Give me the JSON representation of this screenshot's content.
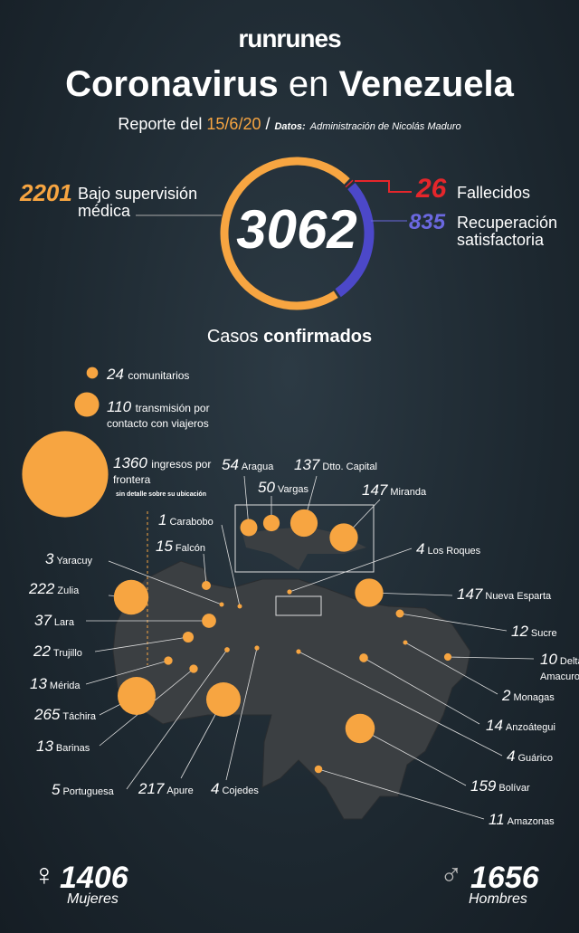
{
  "header": {
    "brand": "runrunes",
    "title_a": "Coronavirus",
    "title_b": "en",
    "title_c": "Venezuela",
    "report_label": "Reporte del",
    "date": "15/6/20",
    "source_label": "Datos:",
    "source": "Administración de Nicolás Maduro"
  },
  "summary": {
    "total": 3062,
    "total_label_a": "Casos",
    "total_label_b": "confirmados",
    "segments": [
      {
        "value": 2201,
        "label": "Bajo supervisión médica",
        "color": "#f7a541"
      },
      {
        "value": 26,
        "label": "Fallecidos",
        "color": "#e5262b"
      },
      {
        "value": 835,
        "label": "Recuperación satisfactoria",
        "color": "#4c48c9"
      }
    ]
  },
  "legend": [
    {
      "value": 24,
      "label": "comunitarios"
    },
    {
      "value": 110,
      "label": "transmisión por contacto con viajeros"
    },
    {
      "value": 1360,
      "label": "ingresos por frontera",
      "note": "sin detalle sobre su ubicación"
    }
  ],
  "states": [
    {
      "name": "Aragua",
      "value": 54
    },
    {
      "name": "Vargas",
      "value": 50
    },
    {
      "name": "Dtto. Capital",
      "value": 137
    },
    {
      "name": "Miranda",
      "value": 147
    },
    {
      "name": "Carabobo",
      "value": 1
    },
    {
      "name": "Falcón",
      "value": 15
    },
    {
      "name": "Los Roques",
      "value": 4
    },
    {
      "name": "Yaracuy",
      "value": 3
    },
    {
      "name": "Zulia",
      "value": 222
    },
    {
      "name": "Nueva Esparta",
      "value": 147
    },
    {
      "name": "Lara",
      "value": 37
    },
    {
      "name": "Sucre",
      "value": 12
    },
    {
      "name": "Trujillo",
      "value": 22
    },
    {
      "name": "Delta Amacuro",
      "value": 10
    },
    {
      "name": "Mérida",
      "value": 13
    },
    {
      "name": "Monagas",
      "value": 2
    },
    {
      "name": "Táchira",
      "value": 265
    },
    {
      "name": "Anzoátegui",
      "value": 14
    },
    {
      "name": "Barinas",
      "value": 13
    },
    {
      "name": "Guárico",
      "value": 4
    },
    {
      "name": "Portuguesa",
      "value": 5
    },
    {
      "name": "Apure",
      "value": 217
    },
    {
      "name": "Cojedes",
      "value": 4
    },
    {
      "name": "Bolívar",
      "value": 159
    },
    {
      "name": "Amazonas",
      "value": 11
    }
  ],
  "gender": [
    {
      "symbol": "♀",
      "value": 1406,
      "label": "Mujeres"
    },
    {
      "symbol": "♂",
      "value": 1656,
      "label": "Hombres"
    }
  ]
}
